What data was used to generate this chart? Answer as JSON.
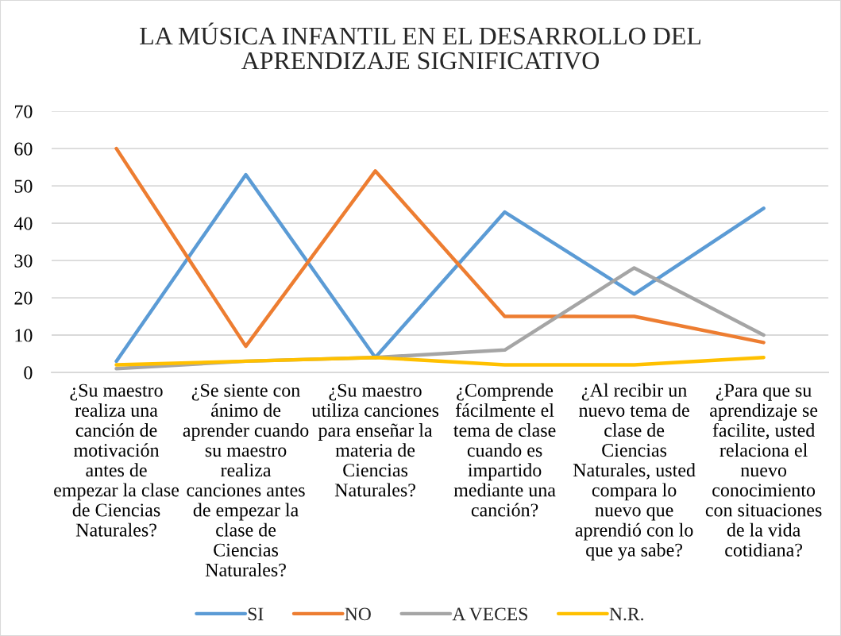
{
  "chart_data": {
    "type": "line",
    "title": "LA MÚSICA INFANTIL EN EL DESARROLLO DEL\nAPRENDIZAJE SIGNIFICATIVO",
    "categories": [
      "¿Su maestro\nrealiza una\ncanción de\nmotivación\nantes de\nempezar la clase\nde Ciencias\nNaturales?",
      "¿Se siente con\nánimo de\naprender cuando\nsu maestro\nrealiza\ncanciones antes\nde empezar la\nclase de\nCiencias\nNaturales?",
      "¿Su maestro\nutiliza canciones\npara enseñar la\nmateria de\nCiencias\nNaturales?",
      "¿Comprende\nfácilmente el\ntema de clase\ncuando es\nimpartido\nmediante una\ncanción?",
      "¿Al recibir un\nnuevo tema de\nclase de\nCiencias\nNaturales, usted\ncompara lo\nnuevo que\naprendió con lo\nque ya sabe?",
      "¿Para que su\naprendizaje se\nfacilite, usted\nrelaciona el\nnuevo\nconocimiento\ncon situaciones\nde la vida\ncotidiana?"
    ],
    "series": [
      {
        "name": "SI",
        "color": "#5b9bd5",
        "values": [
          3,
          53,
          4,
          43,
          21,
          44
        ]
      },
      {
        "name": "NO",
        "color": "#ed7d31",
        "values": [
          60,
          7,
          54,
          15,
          15,
          8
        ]
      },
      {
        "name": "A VECES",
        "color": "#a5a5a5",
        "values": [
          1,
          3,
          4,
          6,
          28,
          10
        ]
      },
      {
        "name": "N.R.",
        "color": "#ffc000",
        "values": [
          2,
          3,
          4,
          2,
          2,
          4
        ]
      }
    ],
    "ylim": [
      0,
      70
    ],
    "yticks": [
      0,
      10,
      20,
      30,
      40,
      50,
      60,
      70
    ],
    "grid": "y",
    "legend": "bottom",
    "marker": "none",
    "line_style": "solid"
  }
}
